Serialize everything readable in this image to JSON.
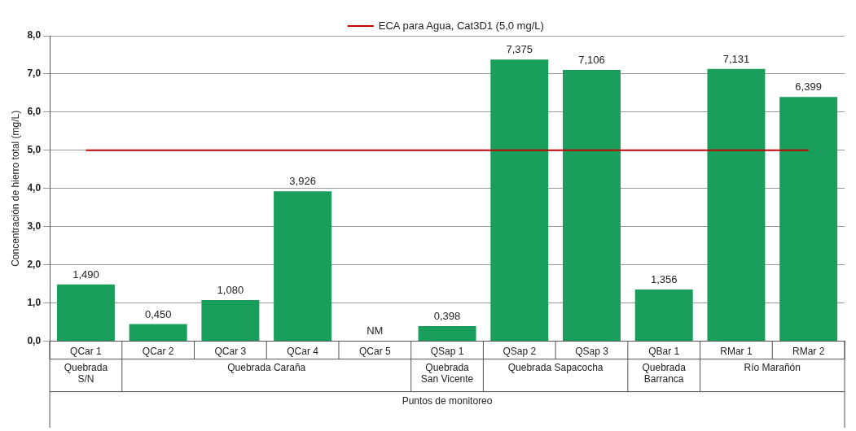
{
  "chart_data": {
    "type": "bar",
    "xlabel": "Puntos de monitoreo",
    "ylabel": "Concentración de hierro total (mg/L)",
    "categories": [
      "QCar 1",
      "QCar 2",
      "QCar 3",
      "QCar 4",
      "QCar 5",
      "QSap 1",
      "QSap 2",
      "QSap 3",
      "QBar 1",
      "RMar 1",
      "RMar 2"
    ],
    "values": [
      1.49,
      0.45,
      1.08,
      3.926,
      null,
      0.398,
      7.375,
      7.106,
      1.356,
      7.131,
      6.399
    ],
    "value_labels": [
      "1,490",
      "0,450",
      "1,080",
      "3,926",
      "NM",
      "0,398",
      "7,375",
      "7,106",
      "1,356",
      "7,131",
      "6,399"
    ],
    "color": "#1a9e5c",
    "ylim": [
      0,
      8
    ],
    "yticks": [
      {
        "value": 0,
        "label": "0,0"
      },
      {
        "value": 1,
        "label": "1,0"
      },
      {
        "value": 2,
        "label": "2,0"
      },
      {
        "value": 3,
        "label": "3,0"
      },
      {
        "value": 4,
        "label": "4,0"
      },
      {
        "value": 5,
        "label": "5,0"
      },
      {
        "value": 6,
        "label": "6,0"
      },
      {
        "value": 7,
        "label": "7,0"
      },
      {
        "value": 8,
        "label": "8,0"
      }
    ],
    "grid": "y",
    "ref_lines": [
      {
        "axis": "y",
        "value": 5,
        "label": "ECA para Agua, Cat3D1 (5,0 mg/L)",
        "color": "#c00000"
      }
    ],
    "legend": "top",
    "annotations": [
      "Quebrada\nS/N",
      "Quebrada Caraña",
      "Quebrada\nSan Vicente",
      "Quebrada Sapacocha",
      "Quebrada\nBarranca",
      "Río Marañón"
    ]
  }
}
